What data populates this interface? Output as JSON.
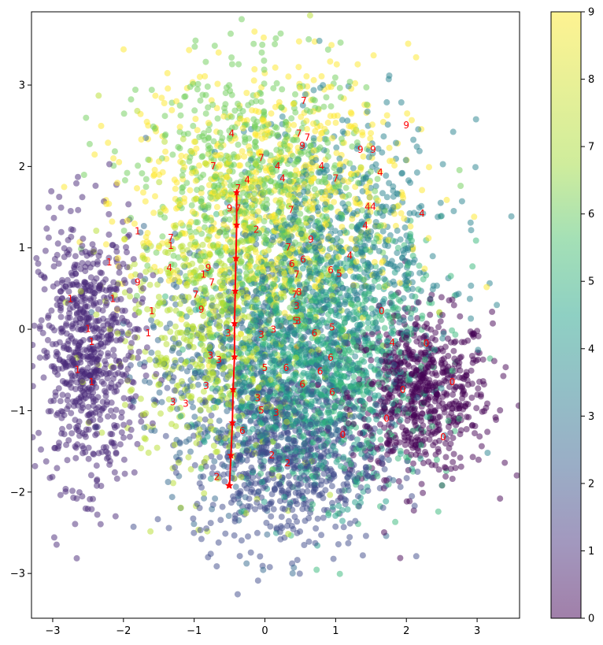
{
  "chart_data": {
    "type": "scatter",
    "title": "",
    "xlabel": "",
    "ylabel": "",
    "xlim": [
      -3.3,
      3.6
    ],
    "ylim": [
      -3.55,
      3.9
    ],
    "xticks": [
      "−3",
      "−2",
      "−1",
      "0",
      "1",
      "2",
      "3"
    ],
    "xtick_values": [
      -3,
      -2,
      -1,
      0,
      1,
      2,
      3
    ],
    "yticks": [
      "−3",
      "−2",
      "−1",
      "0",
      "1",
      "2",
      "3"
    ],
    "ytick_values": [
      -3,
      -2,
      -1,
      0,
      1,
      2,
      3
    ],
    "grid": false,
    "colormap": "viridis",
    "point_alpha": 0.5,
    "colorbar": {
      "min": 0,
      "max": 9,
      "ticks": [
        "0",
        "1",
        "2",
        "3",
        "4",
        "5",
        "6",
        "7",
        "8",
        "9"
      ],
      "tick_values": [
        0,
        1,
        2,
        3,
        4,
        5,
        6,
        7,
        8,
        9
      ]
    },
    "clusters": [
      {
        "label": 0,
        "cx": 2.2,
        "cy": -0.8,
        "sx": 0.5,
        "sy": 0.5,
        "n": 700
      },
      {
        "label": 1,
        "cx": -2.5,
        "cy": -0.3,
        "sx": 0.35,
        "sy": 0.8,
        "n": 750
      },
      {
        "label": 2,
        "cx": 0.3,
        "cy": -1.6,
        "sx": 0.65,
        "sy": 0.55,
        "n": 650
      },
      {
        "label": 3,
        "cx": -0.1,
        "cy": -0.5,
        "sx": 0.8,
        "sy": 0.8,
        "n": 650
      },
      {
        "label": 4,
        "cx": 1.1,
        "cy": 0.9,
        "sx": 0.8,
        "sy": 0.8,
        "n": 650
      },
      {
        "label": 5,
        "cx": 0.6,
        "cy": -0.6,
        "sx": 0.7,
        "sy": 0.7,
        "n": 650
      },
      {
        "label": 6,
        "cx": 1.0,
        "cy": -0.3,
        "sx": 0.8,
        "sy": 0.8,
        "n": 650
      },
      {
        "label": 7,
        "cx": -0.1,
        "cy": 1.7,
        "sx": 0.8,
        "sy": 0.75,
        "n": 700
      },
      {
        "label": 8,
        "cx": -0.7,
        "cy": 0.0,
        "sx": 0.7,
        "sy": 0.9,
        "n": 650
      },
      {
        "label": 9,
        "cx": 0.1,
        "cy": 1.6,
        "sx": 1.0,
        "sy": 0.8,
        "n": 700
      }
    ],
    "path": {
      "color": "#ff0000",
      "marker": "star",
      "x": [
        -0.4,
        -0.4,
        -0.41,
        -0.42,
        -0.43,
        -0.43,
        -0.45,
        -0.46,
        -0.48,
        -0.5,
        -0.51
      ],
      "y": [
        1.68,
        1.28,
        0.87,
        0.47,
        0.07,
        -0.34,
        -0.74,
        -1.15,
        -1.55,
        -1.92,
        -1.92
      ]
    },
    "digit_labels": [
      {
        "t": "7",
        "x": 0.55,
        "y": 2.8
      },
      {
        "t": "9",
        "x": 2.0,
        "y": 2.5
      },
      {
        "t": "4",
        "x": -0.47,
        "y": 2.4
      },
      {
        "t": "7",
        "x": 0.48,
        "y": 2.4
      },
      {
        "t": "7",
        "x": 0.6,
        "y": 2.35
      },
      {
        "t": "9",
        "x": 0.53,
        "y": 2.25
      },
      {
        "t": "9",
        "x": 1.35,
        "y": 2.2
      },
      {
        "t": "9",
        "x": 1.53,
        "y": 2.2
      },
      {
        "t": "7",
        "x": -0.05,
        "y": 2.1
      },
      {
        "t": "7",
        "x": -0.73,
        "y": 2.0
      },
      {
        "t": "4",
        "x": 0.18,
        "y": 2.0
      },
      {
        "t": "4",
        "x": 0.8,
        "y": 2.0
      },
      {
        "t": "4",
        "x": 0.25,
        "y": 1.85
      },
      {
        "t": "7",
        "x": 1.0,
        "y": 1.85
      },
      {
        "t": "4",
        "x": 1.63,
        "y": 1.92
      },
      {
        "t": "4",
        "x": -0.25,
        "y": 1.83
      },
      {
        "t": "7",
        "x": -0.38,
        "y": 1.73
      },
      {
        "t": "9",
        "x": -0.5,
        "y": 1.48
      },
      {
        "t": "7",
        "x": -0.38,
        "y": 1.48
      },
      {
        "t": "7",
        "x": 0.37,
        "y": 1.46
      },
      {
        "t": "4",
        "x": 1.45,
        "y": 1.5
      },
      {
        "t": "4",
        "x": 1.53,
        "y": 1.5
      },
      {
        "t": "4",
        "x": 2.22,
        "y": 1.42
      },
      {
        "t": "4",
        "x": 1.42,
        "y": 1.27
      },
      {
        "t": "1",
        "x": -1.8,
        "y": 1.2
      },
      {
        "t": "2",
        "x": -0.12,
        "y": 1.22
      },
      {
        "t": "7",
        "x": -1.33,
        "y": 1.12
      },
      {
        "t": "1",
        "x": -1.33,
        "y": 1.02
      },
      {
        "t": "9",
        "x": 0.65,
        "y": 1.1
      },
      {
        "t": "7",
        "x": 0.33,
        "y": 1.0
      },
      {
        "t": "1",
        "x": -2.2,
        "y": 0.82
      },
      {
        "t": "4",
        "x": -1.35,
        "y": 0.75
      },
      {
        "t": "6",
        "x": 0.38,
        "y": 0.8
      },
      {
        "t": "6",
        "x": 0.54,
        "y": 0.85
      },
      {
        "t": "4",
        "x": 1.2,
        "y": 0.9
      },
      {
        "t": "9",
        "x": -0.8,
        "y": 0.75
      },
      {
        "t": "1",
        "x": -0.87,
        "y": 0.67
      },
      {
        "t": "9",
        "x": -1.8,
        "y": 0.57
      },
      {
        "t": "7",
        "x": -0.75,
        "y": 0.57
      },
      {
        "t": "7",
        "x": 0.45,
        "y": 0.67
      },
      {
        "t": "6",
        "x": 0.93,
        "y": 0.72
      },
      {
        "t": "5",
        "x": 1.05,
        "y": 0.68
      },
      {
        "t": "7",
        "x": -0.98,
        "y": 0.42
      },
      {
        "t": "1",
        "x": -2.75,
        "y": 0.37
      },
      {
        "t": "1",
        "x": -2.15,
        "y": 0.37
      },
      {
        "t": "1",
        "x": -1.6,
        "y": 0.22
      },
      {
        "t": "9",
        "x": -0.9,
        "y": 0.24
      },
      {
        "t": "7",
        "x": 0.42,
        "y": 0.42
      },
      {
        "t": "8",
        "x": 0.48,
        "y": 0.45
      },
      {
        "t": "3",
        "x": 0.45,
        "y": 0.28
      },
      {
        "t": "0",
        "x": 1.65,
        "y": 0.22
      },
      {
        "t": "5",
        "x": 0.43,
        "y": 0.1
      },
      {
        "t": "3",
        "x": 0.47,
        "y": 0.1
      },
      {
        "t": "5",
        "x": 0.95,
        "y": 0.02
      },
      {
        "t": "1",
        "x": -2.5,
        "y": 0.0
      },
      {
        "t": "1",
        "x": -1.65,
        "y": -0.05
      },
      {
        "t": "3",
        "x": -0.52,
        "y": -0.05
      },
      {
        "t": "3",
        "x": -0.05,
        "y": -0.07
      },
      {
        "t": "3",
        "x": 0.12,
        "y": -0.01
      },
      {
        "t": "6",
        "x": 0.7,
        "y": -0.05
      },
      {
        "t": "0",
        "x": 2.28,
        "y": -0.18
      },
      {
        "t": "1",
        "x": -2.45,
        "y": -0.16
      },
      {
        "t": "4",
        "x": 1.8,
        "y": -0.17
      },
      {
        "t": "3",
        "x": -0.77,
        "y": -0.33
      },
      {
        "t": "6",
        "x": 0.93,
        "y": -0.35
      },
      {
        "t": "3",
        "x": -0.65,
        "y": -0.38
      },
      {
        "t": "1",
        "x": -2.65,
        "y": -0.5
      },
      {
        "t": "5",
        "x": 0.0,
        "y": -0.48
      },
      {
        "t": "6",
        "x": 0.3,
        "y": -0.48
      },
      {
        "t": "6",
        "x": 0.78,
        "y": -0.52
      },
      {
        "t": "1",
        "x": -2.45,
        "y": -0.65
      },
      {
        "t": "3",
        "x": -0.83,
        "y": -0.7
      },
      {
        "t": "6",
        "x": 0.53,
        "y": -0.68
      },
      {
        "t": "0",
        "x": 2.65,
        "y": -0.65
      },
      {
        "t": "0",
        "x": 1.95,
        "y": -0.75
      },
      {
        "t": "6",
        "x": 0.95,
        "y": -0.78
      },
      {
        "t": "3",
        "x": -1.3,
        "y": -0.9
      },
      {
        "t": "3",
        "x": -1.12,
        "y": -0.92
      },
      {
        "t": "3",
        "x": -0.1,
        "y": -0.85
      },
      {
        "t": "5",
        "x": -0.05,
        "y": -1.0
      },
      {
        "t": "3",
        "x": 0.16,
        "y": -1.03
      },
      {
        "t": "0",
        "x": 1.72,
        "y": -1.1
      },
      {
        "t": "6",
        "x": -0.32,
        "y": -1.25
      },
      {
        "t": "0",
        "x": 1.1,
        "y": -1.3
      },
      {
        "t": "0",
        "x": 2.52,
        "y": -1.33
      },
      {
        "t": "2",
        "x": 0.1,
        "y": -1.55
      },
      {
        "t": "2",
        "x": 0.32,
        "y": -1.65
      },
      {
        "t": "2",
        "x": -0.68,
        "y": -1.82
      }
    ]
  }
}
